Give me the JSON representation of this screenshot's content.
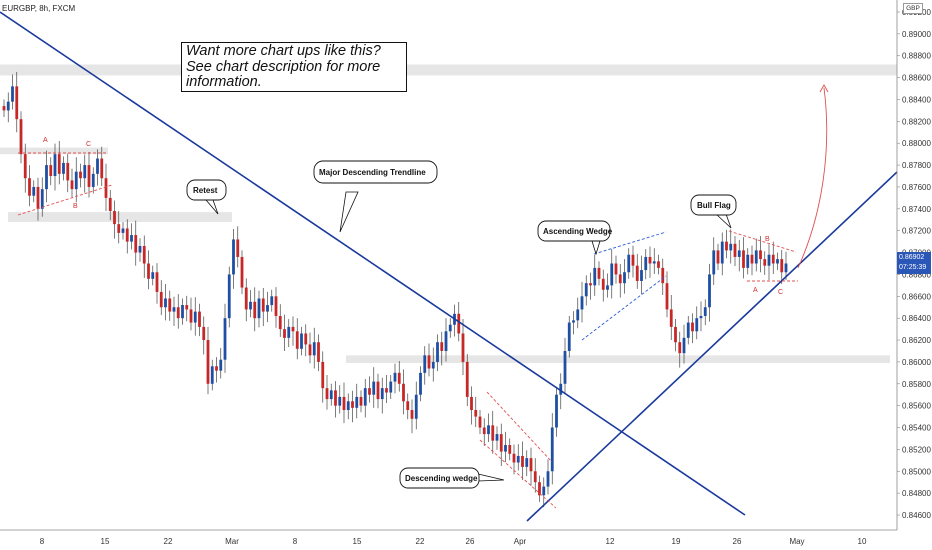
{
  "header": {
    "symbol": "EURGBP, 8h, FXCM",
    "currency": "GBP"
  },
  "promo": {
    "line1": "Want more chart ups like this?",
    "line2": "See chart description for more",
    "line3": "information."
  },
  "price_tag": {
    "price": "0.86902",
    "countdown": "07:25:39"
  },
  "colors": {
    "up": "#1f4fa3",
    "down": "#c62828",
    "trendline": "#1a3a9c",
    "pattern_blue": "#2a5ad6",
    "pattern_red": "#e05050",
    "zone": "#e6e6e6"
  },
  "chart_data": {
    "type": "candlestick",
    "title": "",
    "y_axis": {
      "range": [
        0.845,
        0.893
      ],
      "ticks": [
        "0.84600",
        "0.84800",
        "0.85000",
        "0.85200",
        "0.85400",
        "0.85600",
        "0.85800",
        "0.86000",
        "0.86200",
        "0.86400",
        "0.86600",
        "0.86800",
        "0.87000",
        "0.87200",
        "0.87400",
        "0.87600",
        "0.87800",
        "0.88000",
        "0.88200",
        "0.88400",
        "0.88600",
        "0.88800",
        "0.89000",
        "0.89200"
      ]
    },
    "x_axis": {
      "ticks": [
        "8",
        "15",
        "22",
        "Mar",
        "8",
        "15",
        "22",
        "26",
        "Apr",
        "12",
        "19",
        "26",
        "May",
        "10"
      ]
    },
    "annotations": {
      "major_trendline": "Major Descending Trendline",
      "retest": "Retest",
      "ascending_wedge": "Ascending Wedge",
      "descending_wedge": "Descending wedge",
      "bull_flag": "Bull Flag",
      "triangle_a": "A",
      "triangle_b": "B",
      "triangle_c": "C",
      "flag_a": "A",
      "flag_b": "B",
      "flag_c": "C"
    },
    "zones": [
      {
        "low": 0.8862,
        "high": 0.8872
      },
      {
        "low": 0.879,
        "high": 0.8796
      },
      {
        "low": 0.8728,
        "high": 0.8737
      },
      {
        "low": 0.8599,
        "high": 0.8606
      }
    ],
    "closes": [
      0.883,
      0.8838,
      0.8852,
      0.8822,
      0.879,
      0.8768,
      0.8752,
      0.876,
      0.874,
      0.8758,
      0.878,
      0.877,
      0.879,
      0.8772,
      0.8782,
      0.8766,
      0.8758,
      0.8774,
      0.8768,
      0.878,
      0.876,
      0.8772,
      0.8786,
      0.8768,
      0.875,
      0.8738,
      0.8726,
      0.8718,
      0.8722,
      0.871,
      0.8716,
      0.87,
      0.8706,
      0.869,
      0.8676,
      0.8682,
      0.8664,
      0.865,
      0.8658,
      0.8646,
      0.865,
      0.864,
      0.8652,
      0.8648,
      0.8636,
      0.8646,
      0.8632,
      0.862,
      0.858,
      0.8596,
      0.8592,
      0.8602,
      0.864,
      0.868,
      0.8712,
      0.8696,
      0.8668,
      0.8648,
      0.8655,
      0.864,
      0.8658,
      0.8646,
      0.8652,
      0.866,
      0.8642,
      0.863,
      0.8622,
      0.8632,
      0.8628,
      0.8612,
      0.8626,
      0.8616,
      0.8606,
      0.8618,
      0.86,
      0.8576,
      0.8566,
      0.8574,
      0.856,
      0.8568,
      0.8556,
      0.8564,
      0.8558,
      0.8568,
      0.856,
      0.8576,
      0.857,
      0.8582,
      0.8566,
      0.8576,
      0.8572,
      0.8582,
      0.859,
      0.858,
      0.8564,
      0.8556,
      0.8548,
      0.857,
      0.859,
      0.8606,
      0.8594,
      0.86,
      0.8618,
      0.861,
      0.8628,
      0.8634,
      0.8644,
      0.8626,
      0.86,
      0.8568,
      0.8556,
      0.855,
      0.854,
      0.8534,
      0.8542,
      0.8528,
      0.8534,
      0.8518,
      0.8524,
      0.8516,
      0.8508,
      0.8514,
      0.8504,
      0.8512,
      0.85,
      0.849,
      0.8478,
      0.8486,
      0.85,
      0.854,
      0.857,
      0.858,
      0.861,
      0.8636,
      0.8638,
      0.8648,
      0.866,
      0.8672,
      0.867,
      0.8686,
      0.8676,
      0.8666,
      0.867,
      0.869,
      0.868,
      0.8672,
      0.8682,
      0.8698,
      0.8688,
      0.8674,
      0.8684,
      0.8696,
      0.869,
      0.8692,
      0.8686,
      0.8672,
      0.8648,
      0.8632,
      0.8618,
      0.8608,
      0.8622,
      0.8636,
      0.8628,
      0.864,
      0.8642,
      0.865,
      0.868,
      0.8702,
      0.869,
      0.871,
      0.8702,
      0.8708,
      0.8696,
      0.8702,
      0.8686,
      0.8698,
      0.869,
      0.8702,
      0.8694,
      0.8688,
      0.8698,
      0.869,
      0.8694,
      0.8682,
      0.869
    ]
  }
}
